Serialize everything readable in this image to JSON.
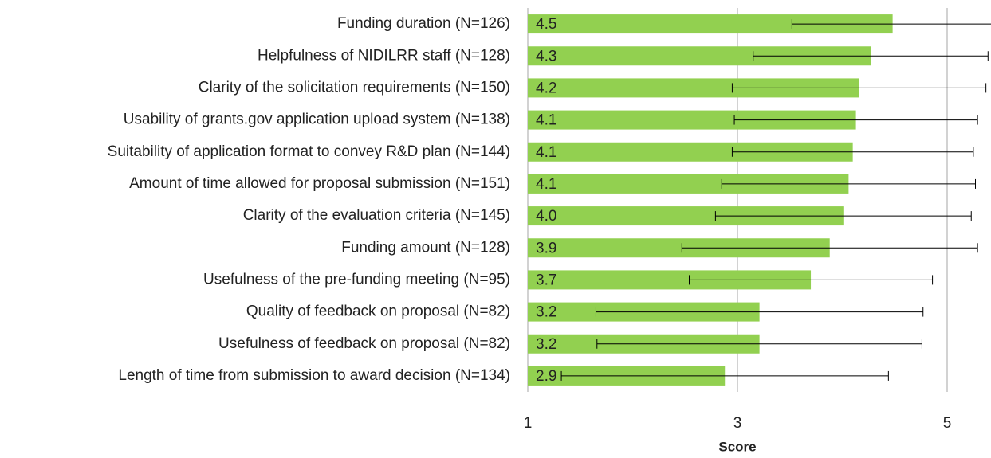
{
  "chart_data": {
    "type": "bar",
    "orientation": "horizontal",
    "categories": [
      "Funding duration (N=126)",
      "Helpfulness of NIDILRR staff (N=128)",
      "Clarity of the solicitation requirements (N=150)",
      "Usability of grants.gov application upload system (N=138)",
      "Suitability of application format to convey R&D plan (N=144)",
      "Amount of time allowed for proposal submission (N=151)",
      "Clarity of the evaluation criteria (N=145)",
      "Funding amount (N=128)",
      "Usefulness of the pre-funding meeting (N=95)",
      "Quality of feedback on proposal (N=82)",
      "Usefulness of feedback on proposal (N=82)",
      "Length of time from submission to award decision (N=134)"
    ],
    "values": [
      4.48,
      4.27,
      4.16,
      4.13,
      4.1,
      4.06,
      4.01,
      3.88,
      3.7,
      3.21,
      3.21,
      2.88
    ],
    "value_labels": [
      "4.5",
      "4.3",
      "4.2",
      "4.1",
      "4.1",
      "4.1",
      "4.0",
      "3.9",
      "3.7",
      "3.2",
      "3.2",
      "2.9"
    ],
    "errors": [
      0.96,
      1.12,
      1.21,
      1.16,
      1.15,
      1.21,
      1.22,
      1.41,
      1.16,
      1.56,
      1.55,
      1.56
    ],
    "color": "#92d050",
    "xlabel": "Score",
    "xlim": [
      1,
      5.4
    ],
    "xticks": [
      1,
      3,
      5
    ],
    "grid": true
  }
}
